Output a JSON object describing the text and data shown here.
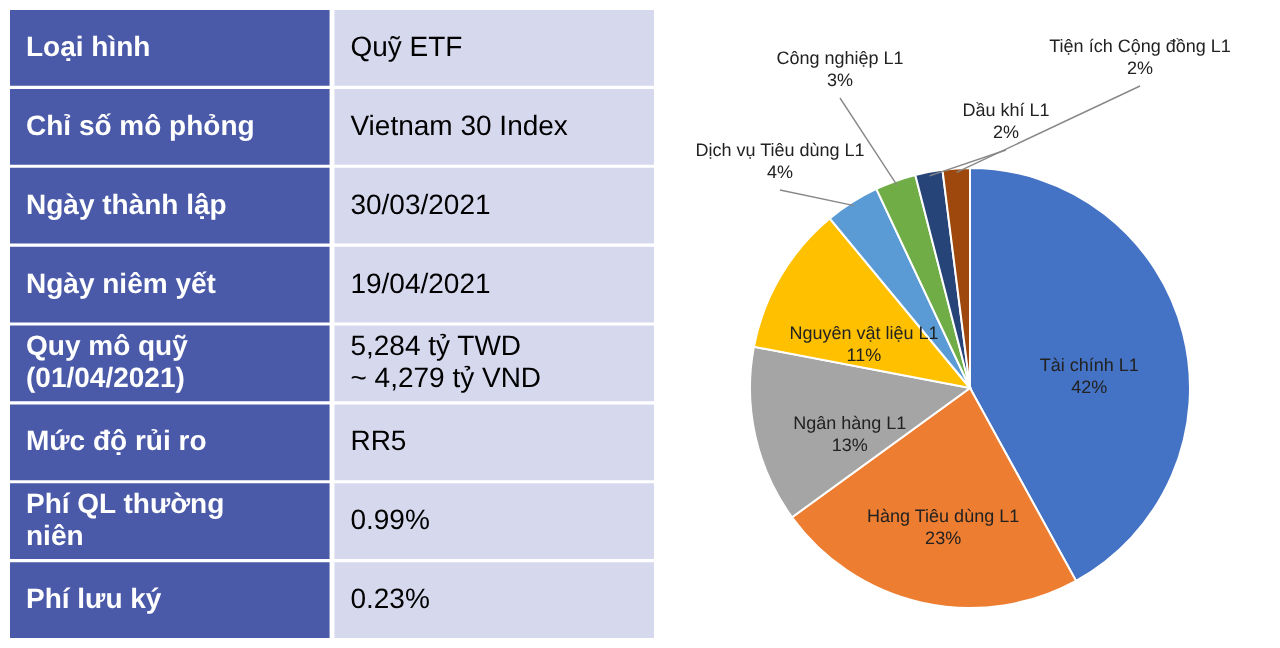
{
  "chart_data": [
    {
      "type": "other",
      "colors": [
        "#4a5aa8",
        "#d6d9ee"
      ],
      "cells": [
        [
          "Loại hình",
          "Quỹ ETF"
        ],
        [
          "Chỉ số mô phỏng",
          "Vietnam 30 Index"
        ],
        [
          "Ngày thành lập",
          "30/03/2021"
        ],
        [
          "Ngày niêm yết",
          "19/04/2021"
        ],
        [
          "Quy mô quỹ\n(01/04/2021)",
          "5,284 tỷ TWD\n~ 4,279 tỷ VND"
        ],
        [
          "Mức độ rủi ro",
          "RR5"
        ],
        [
          "Phí QL thường\nniên",
          "0.99%"
        ],
        [
          "Phí lưu ký",
          "0.23%"
        ]
      ]
    },
    {
      "type": "pie",
      "categories": [
        "Tài chính L1",
        "Hàng Tiêu dùng L1",
        "Ngân hàng L1",
        "Nguyên vật liệu L1",
        "Dịch vụ Tiêu dùng L1",
        "Công nghiệp L1",
        "Dầu khí L1",
        "Tiện ích Cộng đồng L1"
      ],
      "values": [
        42,
        23,
        13,
        11,
        4,
        3,
        2,
        2
      ],
      "colors": [
        "#4472c4",
        "#ed7d31",
        "#a5a5a5",
        "#ffc000",
        "#5b9bd5",
        "#70ad47",
        "#264478",
        "#9e480e"
      ],
      "value_labels": [
        "42%",
        "23%",
        "13%",
        "11%",
        "4%",
        "3%",
        "2%",
        "2%"
      ]
    }
  ]
}
